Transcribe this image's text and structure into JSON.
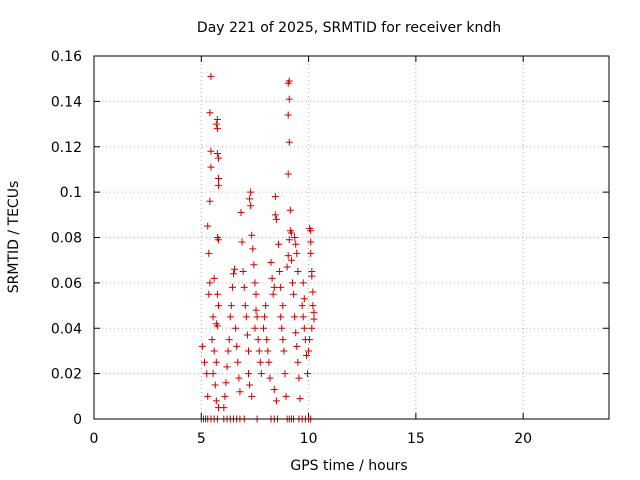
{
  "chart_data": {
    "type": "scatter",
    "title": "Day 221 of 2025, SRMTID for receiver kndh",
    "xlabel": "GPS time / hours",
    "ylabel": "SRMTID / TECUs",
    "xlim": [
      0,
      24
    ],
    "ylim": [
      0,
      0.16
    ],
    "xticks": [
      0,
      5,
      10,
      15,
      20
    ],
    "xtick_labels": [
      "0",
      "5",
      "10",
      "15",
      "20"
    ],
    "yticks": [
      0,
      0.02,
      0.04,
      0.06,
      0.08,
      0.1,
      0.12,
      0.14,
      0.16
    ],
    "ytick_labels": [
      "0",
      "0.02",
      "0.04",
      "0.06",
      "0.08",
      "0.1",
      "0.12",
      "0.14",
      "0.16"
    ],
    "grid": true,
    "marker": "plus",
    "color": "#cc0000",
    "series": [
      {
        "name": "SRMTID",
        "points": [
          [
            5.0,
            0.0
          ],
          [
            5.1,
            0.0
          ],
          [
            5.2,
            0.0
          ],
          [
            5.3,
            0.0
          ],
          [
            5.45,
            0.0
          ],
          [
            5.6,
            0.0
          ],
          [
            5.75,
            0.0
          ],
          [
            6.05,
            0.0
          ],
          [
            6.2,
            0.0
          ],
          [
            6.35,
            0.0
          ],
          [
            6.5,
            0.0
          ],
          [
            6.65,
            0.0
          ],
          [
            6.8,
            0.0
          ],
          [
            7.0,
            0.0
          ],
          [
            7.6,
            0.0
          ],
          [
            8.25,
            0.0
          ],
          [
            8.4,
            0.0
          ],
          [
            8.55,
            0.0
          ],
          [
            9.0,
            0.0
          ],
          [
            9.1,
            0.0
          ],
          [
            9.2,
            0.0
          ],
          [
            9.3,
            0.0
          ],
          [
            9.55,
            0.0
          ],
          [
            9.7,
            0.0
          ],
          [
            9.85,
            0.0
          ],
          [
            10.0,
            0.0
          ],
          [
            10.1,
            0.0
          ],
          [
            5.05,
            0.032
          ],
          [
            5.15,
            0.025
          ],
          [
            5.25,
            0.02
          ],
          [
            5.3,
            0.01
          ],
          [
            5.35,
            0.055
          ],
          [
            5.4,
            0.06
          ],
          [
            5.3,
            0.085
          ],
          [
            5.35,
            0.073
          ],
          [
            5.4,
            0.096
          ],
          [
            5.45,
            0.111
          ],
          [
            5.45,
            0.118
          ],
          [
            5.4,
            0.135
          ],
          [
            5.45,
            0.151
          ],
          [
            5.7,
            0.13
          ],
          [
            5.75,
            0.132
          ],
          [
            5.75,
            0.128
          ],
          [
            5.75,
            0.117
          ],
          [
            5.8,
            0.115
          ],
          [
            5.8,
            0.106
          ],
          [
            5.8,
            0.103
          ],
          [
            5.75,
            0.08
          ],
          [
            5.8,
            0.079
          ],
          [
            5.6,
            0.062
          ],
          [
            5.75,
            0.055
          ],
          [
            5.8,
            0.05
          ],
          [
            5.55,
            0.045
          ],
          [
            5.7,
            0.042
          ],
          [
            5.75,
            0.041
          ],
          [
            5.5,
            0.035
          ],
          [
            5.6,
            0.03
          ],
          [
            5.7,
            0.025
          ],
          [
            5.55,
            0.02
          ],
          [
            5.65,
            0.015
          ],
          [
            5.7,
            0.008
          ],
          [
            5.8,
            0.005
          ],
          [
            6.05,
            0.005
          ],
          [
            6.1,
            0.01
          ],
          [
            6.15,
            0.016
          ],
          [
            6.2,
            0.023
          ],
          [
            6.25,
            0.03
          ],
          [
            6.3,
            0.035
          ],
          [
            6.35,
            0.045
          ],
          [
            6.4,
            0.05
          ],
          [
            6.45,
            0.058
          ],
          [
            6.5,
            0.064
          ],
          [
            6.55,
            0.066
          ],
          [
            6.6,
            0.04
          ],
          [
            6.65,
            0.032
          ],
          [
            6.7,
            0.025
          ],
          [
            6.75,
            0.018
          ],
          [
            6.8,
            0.012
          ],
          [
            6.85,
            0.091
          ],
          [
            6.9,
            0.078
          ],
          [
            6.95,
            0.065
          ],
          [
            7.0,
            0.058
          ],
          [
            7.05,
            0.05
          ],
          [
            7.1,
            0.045
          ],
          [
            7.15,
            0.037
          ],
          [
            7.2,
            0.03
          ],
          [
            7.25,
            0.097
          ],
          [
            7.3,
            0.1
          ],
          [
            7.3,
            0.094
          ],
          [
            7.35,
            0.081
          ],
          [
            7.4,
            0.075
          ],
          [
            7.45,
            0.068
          ],
          [
            7.2,
            0.02
          ],
          [
            7.25,
            0.015
          ],
          [
            7.35,
            0.01
          ],
          [
            7.5,
            0.04
          ],
          [
            7.55,
            0.048
          ],
          [
            7.6,
            0.045
          ],
          [
            7.65,
            0.035
          ],
          [
            7.7,
            0.03
          ],
          [
            7.75,
            0.025
          ],
          [
            7.8,
            0.02
          ],
          [
            7.5,
            0.06
          ],
          [
            7.55,
            0.055
          ],
          [
            7.9,
            0.04
          ],
          [
            7.95,
            0.045
          ],
          [
            8.0,
            0.05
          ],
          [
            8.05,
            0.035
          ],
          [
            8.1,
            0.03
          ],
          [
            8.15,
            0.025
          ],
          [
            8.2,
            0.018
          ],
          [
            8.25,
            0.069
          ],
          [
            8.3,
            0.062
          ],
          [
            8.35,
            0.055
          ],
          [
            8.4,
            0.058
          ],
          [
            8.45,
            0.098
          ],
          [
            8.45,
            0.09
          ],
          [
            8.5,
            0.088
          ],
          [
            8.4,
            0.013
          ],
          [
            8.5,
            0.008
          ],
          [
            8.7,
            0.045
          ],
          [
            8.75,
            0.04
          ],
          [
            8.8,
            0.035
          ],
          [
            8.85,
            0.03
          ],
          [
            8.9,
            0.02
          ],
          [
            8.95,
            0.01
          ],
          [
            8.6,
            0.077
          ],
          [
            8.65,
            0.065
          ],
          [
            8.7,
            0.058
          ],
          [
            8.8,
            0.05
          ],
          [
            9.0,
            0.067
          ],
          [
            9.05,
            0.072
          ],
          [
            9.1,
            0.079
          ],
          [
            9.15,
            0.083
          ],
          [
            9.2,
            0.082
          ],
          [
            9.05,
            0.108
          ],
          [
            9.1,
            0.122
          ],
          [
            9.05,
            0.134
          ],
          [
            9.1,
            0.141
          ],
          [
            9.05,
            0.148
          ],
          [
            9.1,
            0.149
          ],
          [
            9.15,
            0.092
          ],
          [
            9.2,
            0.07
          ],
          [
            9.25,
            0.06
          ],
          [
            9.3,
            0.055
          ],
          [
            9.35,
            0.045
          ],
          [
            9.4,
            0.038
          ],
          [
            9.45,
            0.032
          ],
          [
            9.5,
            0.025
          ],
          [
            9.55,
            0.018
          ],
          [
            9.6,
            0.009
          ],
          [
            9.35,
            0.08
          ],
          [
            9.4,
            0.077
          ],
          [
            9.45,
            0.073
          ],
          [
            9.5,
            0.065
          ],
          [
            9.7,
            0.05
          ],
          [
            9.75,
            0.045
          ],
          [
            9.8,
            0.04
          ],
          [
            9.85,
            0.035
          ],
          [
            9.9,
            0.028
          ],
          [
            9.95,
            0.02
          ],
          [
            9.75,
            0.06
          ],
          [
            9.8,
            0.053
          ],
          [
            10.05,
            0.084
          ],
          [
            10.1,
            0.083
          ],
          [
            10.1,
            0.078
          ],
          [
            10.1,
            0.073
          ],
          [
            10.15,
            0.065
          ],
          [
            10.15,
            0.063
          ],
          [
            10.2,
            0.056
          ],
          [
            10.2,
            0.05
          ],
          [
            10.25,
            0.047
          ],
          [
            10.25,
            0.044
          ],
          [
            10.0,
            0.03
          ],
          [
            10.05,
            0.035
          ],
          [
            10.15,
            0.04
          ]
        ]
      }
    ]
  }
}
